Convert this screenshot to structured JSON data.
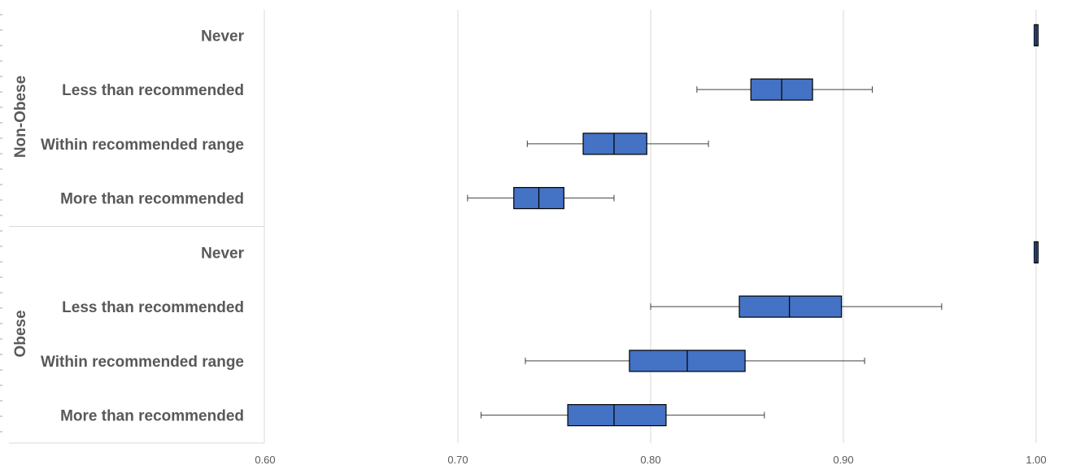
{
  "chart_data": {
    "type": "boxplot",
    "orientation": "horizontal",
    "title": "",
    "xlabel": "",
    "ylabel": "",
    "xlim": [
      0.6,
      1.0
    ],
    "x_ticks": [
      "0.60",
      "0.70",
      "0.80",
      "0.90",
      "1.00"
    ],
    "grid": true,
    "box_color": "#4472c4",
    "groups": [
      {
        "name": "Non-Obese",
        "categories": [
          {
            "label": "Never",
            "min": 0.999,
            "q1": 0.999,
            "median": 1.0,
            "q3": 1.001,
            "max": 1.001
          },
          {
            "label": "Less than recommended",
            "min": 0.824,
            "q1": 0.852,
            "median": 0.868,
            "q3": 0.884,
            "max": 0.915
          },
          {
            "label": "Within recommended range",
            "min": 0.736,
            "q1": 0.765,
            "median": 0.781,
            "q3": 0.798,
            "max": 0.83
          },
          {
            "label": "More than recommended",
            "min": 0.705,
            "q1": 0.729,
            "median": 0.742,
            "q3": 0.755,
            "max": 0.781
          }
        ]
      },
      {
        "name": "Obese",
        "categories": [
          {
            "label": "Never",
            "min": 0.999,
            "q1": 0.999,
            "median": 1.0,
            "q3": 1.001,
            "max": 1.001
          },
          {
            "label": "Less than recommended",
            "min": 0.8,
            "q1": 0.846,
            "median": 0.872,
            "q3": 0.899,
            "max": 0.951
          },
          {
            "label": "Within recommended range",
            "min": 0.735,
            "q1": 0.789,
            "median": 0.819,
            "q3": 0.849,
            "max": 0.911
          },
          {
            "label": "More than recommended",
            "min": 0.712,
            "q1": 0.757,
            "median": 0.781,
            "q3": 0.808,
            "max": 0.859
          }
        ]
      }
    ]
  }
}
